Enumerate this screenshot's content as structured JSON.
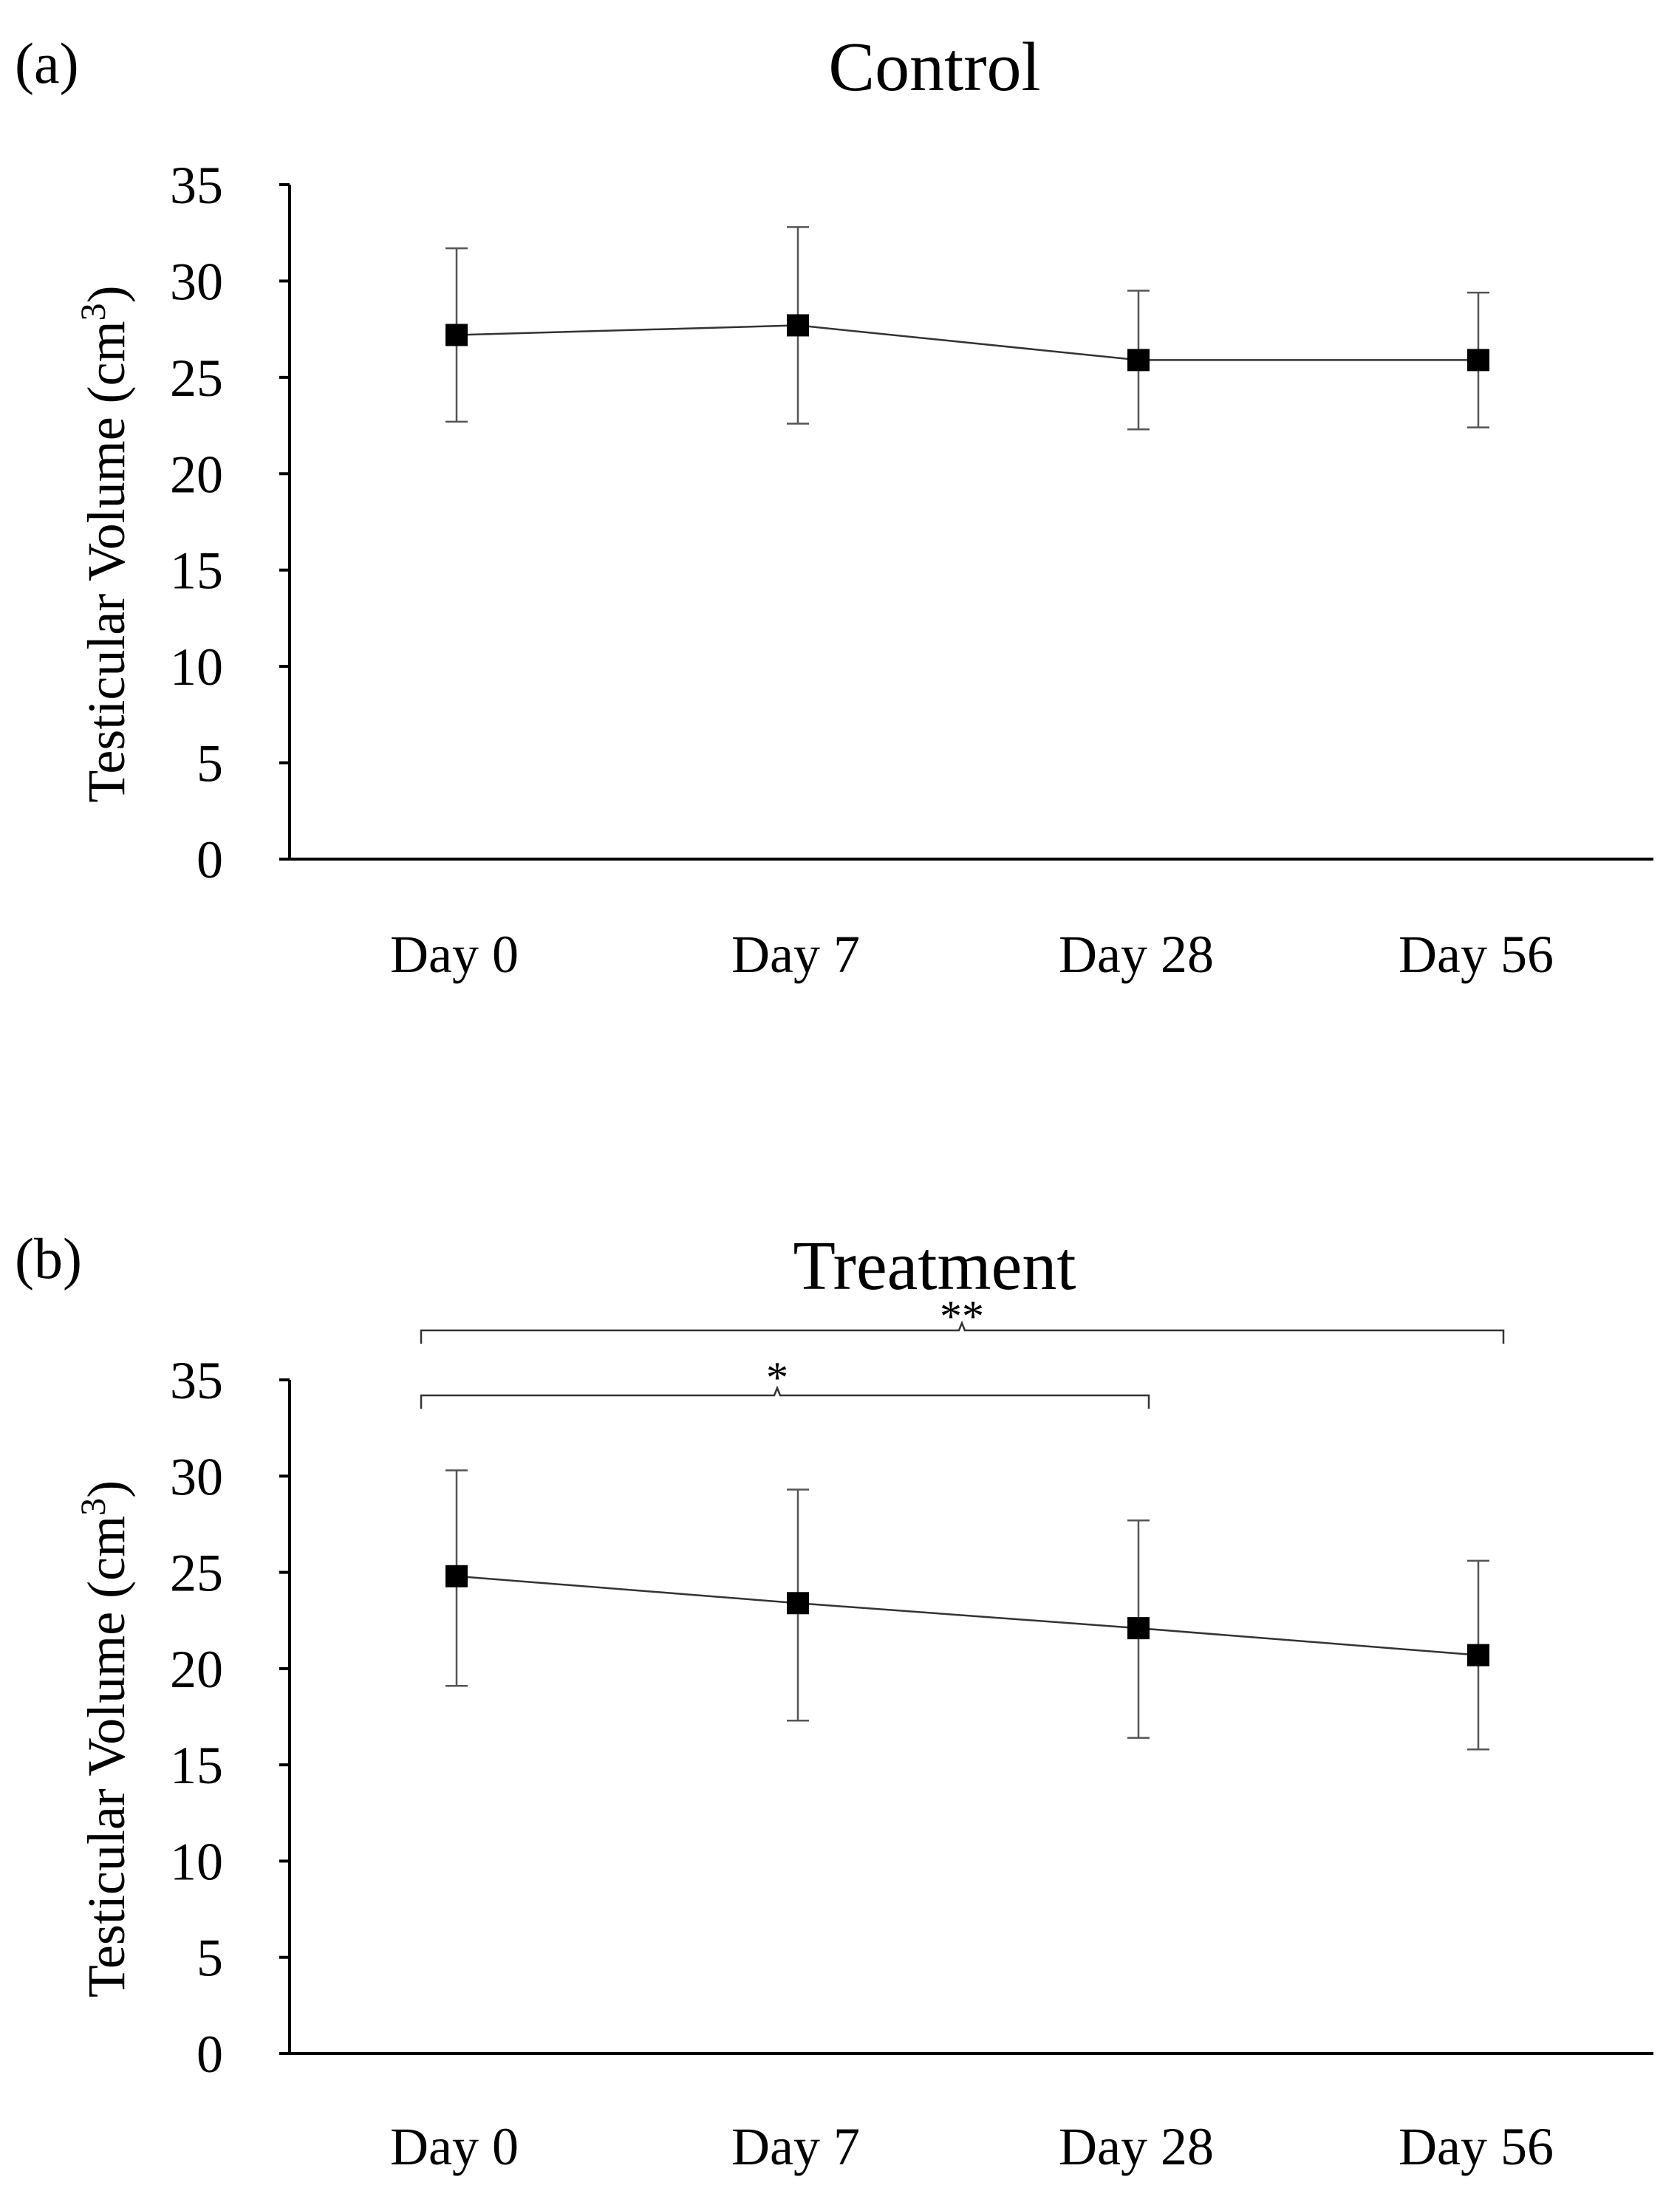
{
  "chart_data": [
    {
      "type": "line",
      "panel_label": "(a)",
      "title": "Control",
      "ylabel": "Testicular Volume (cm",
      "ylabel_superscript": "3",
      "ylabel_close": ")",
      "xlabel": "",
      "categories": [
        "Day 0",
        "Day 7",
        "Day 28",
        "Day 56"
      ],
      "yticks": [
        "0",
        "5",
        "10",
        "15",
        "20",
        "25",
        "30",
        "35"
      ],
      "ylim": [
        0,
        35
      ],
      "series": [
        {
          "name": "Control",
          "values": [
            27.2,
            27.7,
            25.9,
            25.9
          ],
          "error_low": [
            22.7,
            22.6,
            22.3,
            22.4
          ],
          "error_high": [
            31.7,
            32.8,
            29.5,
            29.4
          ]
        }
      ],
      "significance": []
    },
    {
      "type": "line",
      "panel_label": "(b)",
      "title": "Treatment",
      "ylabel": "Testicular Volume (cm",
      "ylabel_superscript": "3",
      "ylabel_close": ")",
      "xlabel": "",
      "categories": [
        "Day 0",
        "Day 7",
        "Day 28",
        "Day 56"
      ],
      "yticks": [
        "0",
        "5",
        "10",
        "15",
        "20",
        "25",
        "30",
        "35"
      ],
      "ylim": [
        0,
        35
      ],
      "series": [
        {
          "name": "Treatment",
          "values": [
            24.8,
            23.4,
            22.1,
            20.7
          ],
          "error_low": [
            19.1,
            17.3,
            16.4,
            15.8
          ],
          "error_high": [
            30.3,
            29.3,
            27.7,
            25.6
          ]
        }
      ],
      "significance": [
        {
          "label": "**",
          "from": "Day 0",
          "to": "Day 56"
        },
        {
          "label": "*",
          "from": "Day 0",
          "to": "Day 28"
        }
      ]
    }
  ]
}
